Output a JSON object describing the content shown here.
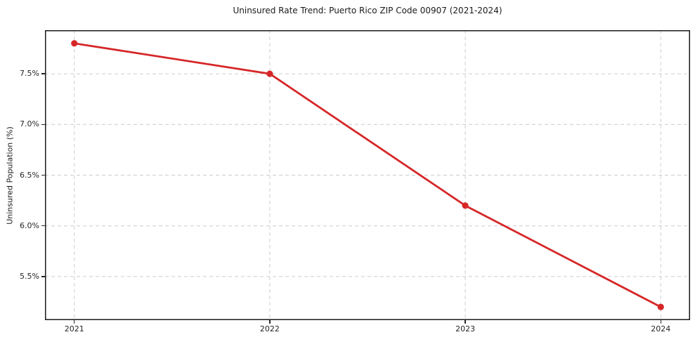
{
  "chart_data": {
    "type": "line",
    "title": "Uninsured Rate Trend: Puerto Rico ZIP Code 00907 (2021-2024)",
    "xlabel": "",
    "ylabel": "Uninsured Population (%)",
    "x": [
      2021,
      2022,
      2023,
      2024
    ],
    "values": [
      7.8,
      7.5,
      6.2,
      5.2
    ],
    "xticks": [
      2021,
      2022,
      2023,
      2024
    ],
    "xtick_labels": [
      "2021",
      "2022",
      "2023",
      "2024"
    ],
    "yticks": [
      5.5,
      6.0,
      6.5,
      7.0,
      7.5
    ],
    "ytick_labels": [
      "5.5%",
      "6.0%",
      "6.5%",
      "7.0%",
      "7.5%"
    ],
    "xlim": [
      2020.85,
      2024.15
    ],
    "ylim": [
      5.07,
      7.93
    ],
    "grid": true,
    "legend": "none",
    "line_color": "#d62728",
    "marker": "o",
    "grid_color": "#cccccc",
    "spine_color": "#1a1a1a"
  }
}
